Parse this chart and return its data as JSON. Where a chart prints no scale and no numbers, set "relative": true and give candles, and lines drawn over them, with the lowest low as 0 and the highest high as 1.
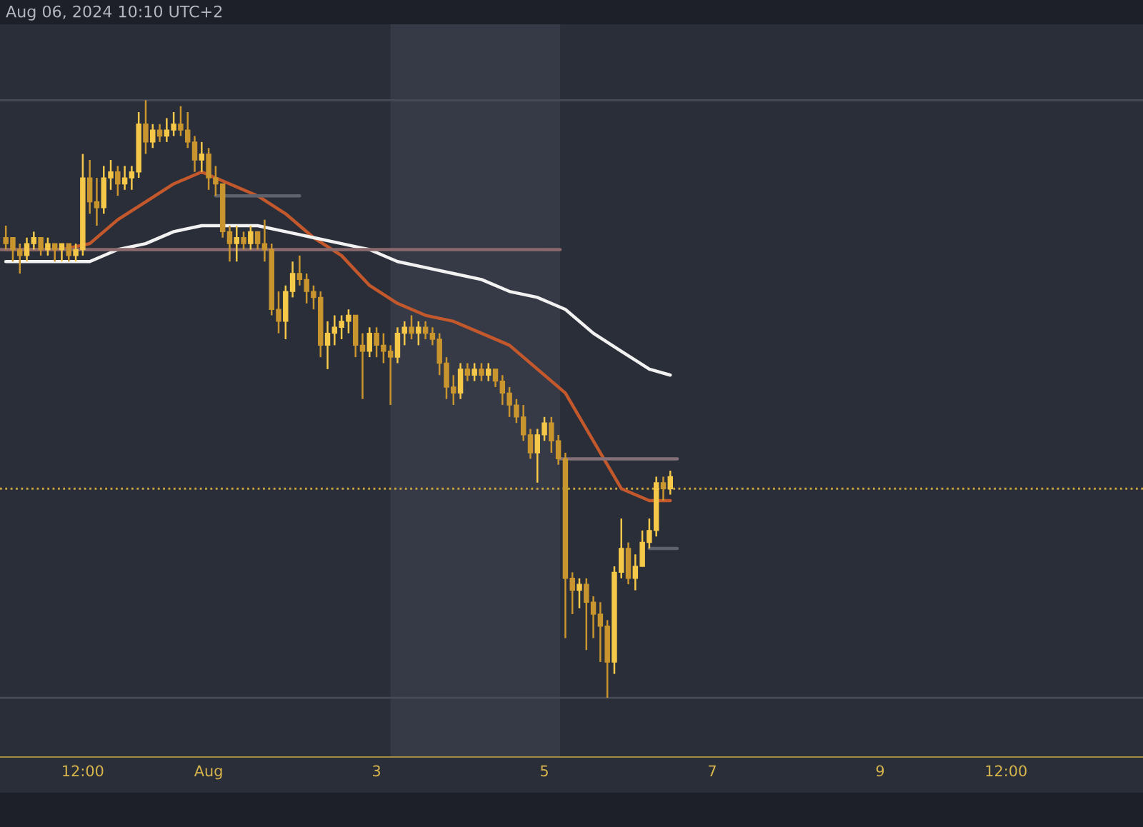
{
  "chart_data": {
    "type": "candlestick",
    "relative": true,
    "annotations": [
      "Aug 06, 2024 10:10 UTC+2"
    ],
    "xlim": [
      "2024-07-29T12:20",
      "2024-08-12T03:10"
    ],
    "xticks": [
      {
        "value": "2024-07-30T12:00",
        "label": "12:00"
      },
      {
        "value": "2024-08-01",
        "label": "Aug"
      },
      {
        "value": "2024-08-03",
        "label": "3"
      },
      {
        "value": "2024-08-05",
        "label": "5"
      },
      {
        "value": "2024-08-07",
        "label": "7"
      },
      {
        "value": "2024-08-09",
        "label": "9"
      },
      {
        "value": "2024-08-10T12:00",
        "label": "12:00"
      }
    ],
    "bands": [
      {
        "axis": "x",
        "from": "2024-08-03T04:00",
        "to": "2024-08-05T04:30",
        "color": "#363a46"
      }
    ],
    "ref_lines": [
      {
        "axis": "y",
        "value": 1,
        "color": "#474b57"
      },
      {
        "axis": "y",
        "value": 0,
        "color": "#474b57"
      },
      {
        "axis": "y",
        "value": 0.35,
        "color": "#c7a63e",
        "line_style": "dotted"
      }
    ],
    "series": [
      {
        "colors": [
          "#c9952f",
          "#c9952f",
          "#c9952f",
          "#f5c84a",
          "#f5c84a",
          "#c9952f",
          "#f5c84a",
          "#c9952f",
          "#f5c84a",
          "#c9952f",
          "#f5c84a",
          "#f5c84a",
          "#c9952f",
          "#c9952f",
          "#f5c84a",
          "#f5c84a",
          "#c9952f",
          "#f5c84a",
          "#f5c84a",
          "#f5c84a",
          "#c9952f",
          "#f5c84a",
          "#c9952f",
          "#f5c84a",
          "#f5c84a",
          "#c9952f",
          "#c9952f",
          "#c9952f",
          "#f5c84a",
          "#c9952f",
          "#c9952f",
          "#c9952f",
          "#c9952f",
          "#f5c84a",
          "#c9952f",
          "#f5c84a",
          "#c9952f",
          "#c9952f",
          "#c9952f",
          "#c9952f",
          "#f5c84a",
          "#f5c84a",
          "#c9952f",
          "#c9952f",
          "#c9952f",
          "#c9952f",
          "#f5c84a",
          "#f5c84a",
          "#f5c84a",
          "#f5c84a",
          "#c9952f",
          "#c9952f",
          "#f5c84a",
          "#c9952f",
          "#c9952f",
          "#c9952f",
          "#f5c84a",
          "#f5c84a",
          "#c9952f",
          "#f5c84a",
          "#c9952f",
          "#c9952f",
          "#c9952f",
          "#c9952f",
          "#c9952f",
          "#f5c84a",
          "#c9952f",
          "#f5c84a",
          "#c9952f",
          "#f5c84a",
          "#c9952f",
          "#c9952f",
          "#c9952f",
          "#c9952f",
          "#c9952f",
          "#c9952f",
          "#f5c84a",
          "#f5c84a",
          "#c9952f",
          "#c9952f",
          "#c9952f",
          "#c9952f",
          "#f5c84a",
          "#c9952f",
          "#c9952f",
          "#c9952f",
          "#c9952f",
          "#f5c84a",
          "#f5c84a",
          "#c9952f",
          "#f5c84a",
          "#f5c84a",
          "#f5c84a",
          "#f5c84a",
          "#c9952f",
          "#f5c84a"
        ],
        "x": [
          "2024-07-29T14:00",
          "2024-07-29T16:00",
          "2024-07-29T18:00",
          "2024-07-29T20:00",
          "2024-07-29T22:00",
          "2024-07-30T00:00",
          "2024-07-30T02:00",
          "2024-07-30T04:00",
          "2024-07-30T06:00",
          "2024-07-30T08:00",
          "2024-07-30T10:00",
          "2024-07-30T12:00",
          "2024-07-30T14:00",
          "2024-07-30T16:00",
          "2024-07-30T18:00",
          "2024-07-30T20:00",
          "2024-07-30T22:00",
          "2024-07-31T00:00",
          "2024-07-31T02:00",
          "2024-07-31T04:00",
          "2024-07-31T06:00",
          "2024-07-31T08:00",
          "2024-07-31T10:00",
          "2024-07-31T12:00",
          "2024-07-31T14:00",
          "2024-07-31T16:00",
          "2024-07-31T18:00",
          "2024-07-31T20:00",
          "2024-07-31T22:00",
          "2024-08-01T00:00",
          "2024-08-01T02:00",
          "2024-08-01T04:00",
          "2024-08-01T06:00",
          "2024-08-01T08:00",
          "2024-08-01T10:00",
          "2024-08-01T12:00",
          "2024-08-01T14:00",
          "2024-08-01T16:00",
          "2024-08-01T18:00",
          "2024-08-01T20:00",
          "2024-08-01T22:00",
          "2024-08-02T00:00",
          "2024-08-02T02:00",
          "2024-08-02T04:00",
          "2024-08-02T06:00",
          "2024-08-02T08:00",
          "2024-08-02T10:00",
          "2024-08-02T12:00",
          "2024-08-02T14:00",
          "2024-08-02T16:00",
          "2024-08-02T18:00",
          "2024-08-02T20:00",
          "2024-08-02T22:00",
          "2024-08-03T00:00",
          "2024-08-03T02:00",
          "2024-08-03T04:00",
          "2024-08-03T06:00",
          "2024-08-03T08:00",
          "2024-08-03T10:00",
          "2024-08-03T12:00",
          "2024-08-03T14:00",
          "2024-08-03T16:00",
          "2024-08-03T18:00",
          "2024-08-03T20:00",
          "2024-08-03T22:00",
          "2024-08-04T00:00",
          "2024-08-04T02:00",
          "2024-08-04T04:00",
          "2024-08-04T06:00",
          "2024-08-04T08:00",
          "2024-08-04T10:00",
          "2024-08-04T12:00",
          "2024-08-04T14:00",
          "2024-08-04T16:00",
          "2024-08-04T18:00",
          "2024-08-04T20:00",
          "2024-08-04T22:00",
          "2024-08-05T00:00",
          "2024-08-05T02:00",
          "2024-08-05T04:00",
          "2024-08-05T06:00",
          "2024-08-05T08:00",
          "2024-08-05T10:00",
          "2024-08-05T12:00",
          "2024-08-05T14:00",
          "2024-08-05T16:00",
          "2024-08-05T18:00",
          "2024-08-05T20:00",
          "2024-08-05T22:00",
          "2024-08-06T00:00",
          "2024-08-06T02:00",
          "2024-08-06T04:00",
          "2024-08-06T06:00",
          "2024-08-06T08:00",
          "2024-08-06T10:00",
          "2024-08-06T12:00"
        ],
        "ohlc": [
          [
            0.77,
            0.79,
            0.75,
            0.76
          ],
          [
            0.77,
            0.77,
            0.73,
            0.75
          ],
          [
            0.75,
            0.76,
            0.71,
            0.74
          ],
          [
            0.74,
            0.77,
            0.73,
            0.76
          ],
          [
            0.76,
            0.78,
            0.75,
            0.77
          ],
          [
            0.77,
            0.77,
            0.74,
            0.75
          ],
          [
            0.75,
            0.77,
            0.74,
            0.76
          ],
          [
            0.76,
            0.76,
            0.73,
            0.75
          ],
          [
            0.75,
            0.76,
            0.73,
            0.76
          ],
          [
            0.76,
            0.76,
            0.73,
            0.74
          ],
          [
            0.74,
            0.76,
            0.73,
            0.75
          ],
          [
            0.75,
            0.91,
            0.74,
            0.87
          ],
          [
            0.87,
            0.9,
            0.81,
            0.83
          ],
          [
            0.83,
            0.87,
            0.79,
            0.82
          ],
          [
            0.82,
            0.89,
            0.81,
            0.87
          ],
          [
            0.87,
            0.9,
            0.85,
            0.88
          ],
          [
            0.88,
            0.89,
            0.84,
            0.86
          ],
          [
            0.86,
            0.89,
            0.85,
            0.87
          ],
          [
            0.87,
            0.89,
            0.85,
            0.88
          ],
          [
            0.88,
            0.98,
            0.87,
            0.96
          ],
          [
            0.96,
            1.0,
            0.91,
            0.93
          ],
          [
            0.93,
            0.96,
            0.92,
            0.95
          ],
          [
            0.95,
            0.96,
            0.93,
            0.94
          ],
          [
            0.94,
            0.97,
            0.93,
            0.95
          ],
          [
            0.95,
            0.98,
            0.94,
            0.96
          ],
          [
            0.96,
            0.99,
            0.94,
            0.95
          ],
          [
            0.95,
            0.98,
            0.92,
            0.93
          ],
          [
            0.93,
            0.94,
            0.88,
            0.9
          ],
          [
            0.9,
            0.93,
            0.88,
            0.91
          ],
          [
            0.91,
            0.92,
            0.85,
            0.87
          ],
          [
            0.87,
            0.89,
            0.84,
            0.86
          ],
          [
            0.86,
            0.86,
            0.77,
            0.78
          ],
          [
            0.78,
            0.79,
            0.73,
            0.76
          ],
          [
            0.76,
            0.79,
            0.73,
            0.77
          ],
          [
            0.77,
            0.78,
            0.75,
            0.76
          ],
          [
            0.76,
            0.79,
            0.75,
            0.78
          ],
          [
            0.78,
            0.78,
            0.75,
            0.76
          ],
          [
            0.76,
            0.8,
            0.73,
            0.75
          ],
          [
            0.75,
            0.76,
            0.64,
            0.65
          ],
          [
            0.65,
            0.68,
            0.61,
            0.63
          ],
          [
            0.63,
            0.69,
            0.6,
            0.68
          ],
          [
            0.68,
            0.73,
            0.67,
            0.71
          ],
          [
            0.71,
            0.74,
            0.69,
            0.7
          ],
          [
            0.7,
            0.71,
            0.66,
            0.68
          ],
          [
            0.68,
            0.69,
            0.65,
            0.67
          ],
          [
            0.67,
            0.68,
            0.57,
            0.59
          ],
          [
            0.59,
            0.63,
            0.55,
            0.61
          ],
          [
            0.61,
            0.64,
            0.59,
            0.62
          ],
          [
            0.62,
            0.64,
            0.6,
            0.63
          ],
          [
            0.63,
            0.65,
            0.61,
            0.64
          ],
          [
            0.64,
            0.64,
            0.57,
            0.59
          ],
          [
            0.59,
            0.61,
            0.5,
            0.58
          ],
          [
            0.58,
            0.62,
            0.57,
            0.61
          ],
          [
            0.61,
            0.62,
            0.57,
            0.59
          ],
          [
            0.59,
            0.61,
            0.56,
            0.58
          ],
          [
            0.58,
            0.59,
            0.49,
            0.57
          ],
          [
            0.57,
            0.62,
            0.56,
            0.61
          ],
          [
            0.61,
            0.63,
            0.59,
            0.62
          ],
          [
            0.62,
            0.64,
            0.6,
            0.61
          ],
          [
            0.61,
            0.63,
            0.59,
            0.62
          ],
          [
            0.62,
            0.63,
            0.6,
            0.61
          ],
          [
            0.61,
            0.62,
            0.59,
            0.6
          ],
          [
            0.6,
            0.61,
            0.54,
            0.56
          ],
          [
            0.56,
            0.57,
            0.5,
            0.52
          ],
          [
            0.52,
            0.54,
            0.49,
            0.51
          ],
          [
            0.51,
            0.56,
            0.5,
            0.55
          ],
          [
            0.55,
            0.56,
            0.53,
            0.54
          ],
          [
            0.54,
            0.56,
            0.53,
            0.55
          ],
          [
            0.55,
            0.56,
            0.53,
            0.54
          ],
          [
            0.54,
            0.56,
            0.53,
            0.55
          ],
          [
            0.55,
            0.55,
            0.52,
            0.53
          ],
          [
            0.53,
            0.54,
            0.49,
            0.51
          ],
          [
            0.51,
            0.52,
            0.47,
            0.49
          ],
          [
            0.49,
            0.5,
            0.46,
            0.47
          ],
          [
            0.47,
            0.49,
            0.43,
            0.44
          ],
          [
            0.44,
            0.45,
            0.4,
            0.41
          ],
          [
            0.41,
            0.45,
            0.36,
            0.44
          ],
          [
            0.44,
            0.47,
            0.43,
            0.46
          ],
          [
            0.46,
            0.47,
            0.41,
            0.43
          ],
          [
            0.43,
            0.44,
            0.39,
            0.4
          ],
          [
            0.4,
            0.41,
            0.1,
            0.2
          ],
          [
            0.2,
            0.21,
            0.14,
            0.18
          ],
          [
            0.18,
            0.2,
            0.15,
            0.19
          ],
          [
            0.19,
            0.2,
            0.08,
            0.16
          ],
          [
            0.16,
            0.17,
            0.1,
            0.14
          ],
          [
            0.14,
            0.16,
            0.06,
            0.12
          ],
          [
            0.12,
            0.13,
            0.0,
            0.06
          ],
          [
            0.06,
            0.22,
            0.04,
            0.21
          ],
          [
            0.21,
            0.3,
            0.2,
            0.25
          ],
          [
            0.25,
            0.26,
            0.19,
            0.2
          ],
          [
            0.2,
            0.24,
            0.18,
            0.22
          ],
          [
            0.22,
            0.28,
            0.22,
            0.26
          ],
          [
            0.26,
            0.3,
            0.25,
            0.28
          ],
          [
            0.28,
            0.37,
            0.27,
            0.36
          ],
          [
            0.36,
            0.37,
            0.33,
            0.35
          ],
          [
            0.35,
            0.38,
            0.34,
            0.37
          ]
        ]
      },
      {
        "type": "line",
        "color": "#c2582c",
        "x": [
          "2024-07-29T14:00",
          "2024-07-29T22:00",
          "2024-07-30T06:00",
          "2024-07-30T14:00",
          "2024-07-30T22:00",
          "2024-07-31T06:00",
          "2024-07-31T14:00",
          "2024-07-31T22:00",
          "2024-08-01T06:00",
          "2024-08-01T14:00",
          "2024-08-01T22:00",
          "2024-08-02T06:00",
          "2024-08-02T14:00",
          "2024-08-02T22:00",
          "2024-08-03T06:00",
          "2024-08-03T14:00",
          "2024-08-03T22:00",
          "2024-08-04T06:00",
          "2024-08-04T14:00",
          "2024-08-04T22:00",
          "2024-08-05T06:00",
          "2024-08-05T14:00",
          "2024-08-05T22:00",
          "2024-08-06T06:00",
          "2024-08-06T12:00"
        ],
        "values": [
          0.75,
          0.75,
          0.75,
          0.76,
          0.8,
          0.83,
          0.86,
          0.88,
          0.86,
          0.84,
          0.81,
          0.77,
          0.74,
          0.69,
          0.66,
          0.64,
          0.63,
          0.61,
          0.59,
          0.55,
          0.51,
          0.43,
          0.35,
          0.33,
          0.33
        ]
      },
      {
        "type": "line",
        "color": "#f2f2f2",
        "x": [
          "2024-07-29T14:00",
          "2024-07-29T22:00",
          "2024-07-30T06:00",
          "2024-07-30T14:00",
          "2024-07-30T22:00",
          "2024-07-31T06:00",
          "2024-07-31T14:00",
          "2024-07-31T22:00",
          "2024-08-01T06:00",
          "2024-08-01T14:00",
          "2024-08-01T22:00",
          "2024-08-02T06:00",
          "2024-08-02T14:00",
          "2024-08-02T22:00",
          "2024-08-03T06:00",
          "2024-08-03T14:00",
          "2024-08-03T22:00",
          "2024-08-04T06:00",
          "2024-08-04T14:00",
          "2024-08-04T22:00",
          "2024-08-05T06:00",
          "2024-08-05T14:00",
          "2024-08-05T22:00",
          "2024-08-06T06:00",
          "2024-08-06T12:00"
        ],
        "values": [
          0.73,
          0.73,
          0.73,
          0.73,
          0.75,
          0.76,
          0.78,
          0.79,
          0.79,
          0.79,
          0.78,
          0.77,
          0.76,
          0.75,
          0.73,
          0.72,
          0.71,
          0.7,
          0.68,
          0.67,
          0.65,
          0.61,
          0.58,
          0.55,
          0.54
        ]
      },
      {
        "type": "line",
        "color": "#5f626d",
        "x": [
          "2024-08-01T02:00",
          "2024-08-02T02:00"
        ],
        "values": [
          0.84,
          0.84
        ]
      },
      {
        "type": "line",
        "color": "#8a6a6c",
        "x": [
          "2024-07-29T12:20",
          "2024-08-05T04:30"
        ],
        "values": [
          0.75,
          0.75
        ]
      },
      {
        "type": "line",
        "color": "#85707a",
        "x": [
          "2024-08-05T04:30",
          "2024-08-06T14:00"
        ],
        "values": [
          0.4,
          0.4
        ]
      },
      {
        "type": "line",
        "color": "#5f626d",
        "x": [
          "2024-08-06T06:00",
          "2024-08-06T14:00"
        ],
        "values": [
          0.25,
          0.25
        ]
      }
    ]
  }
}
